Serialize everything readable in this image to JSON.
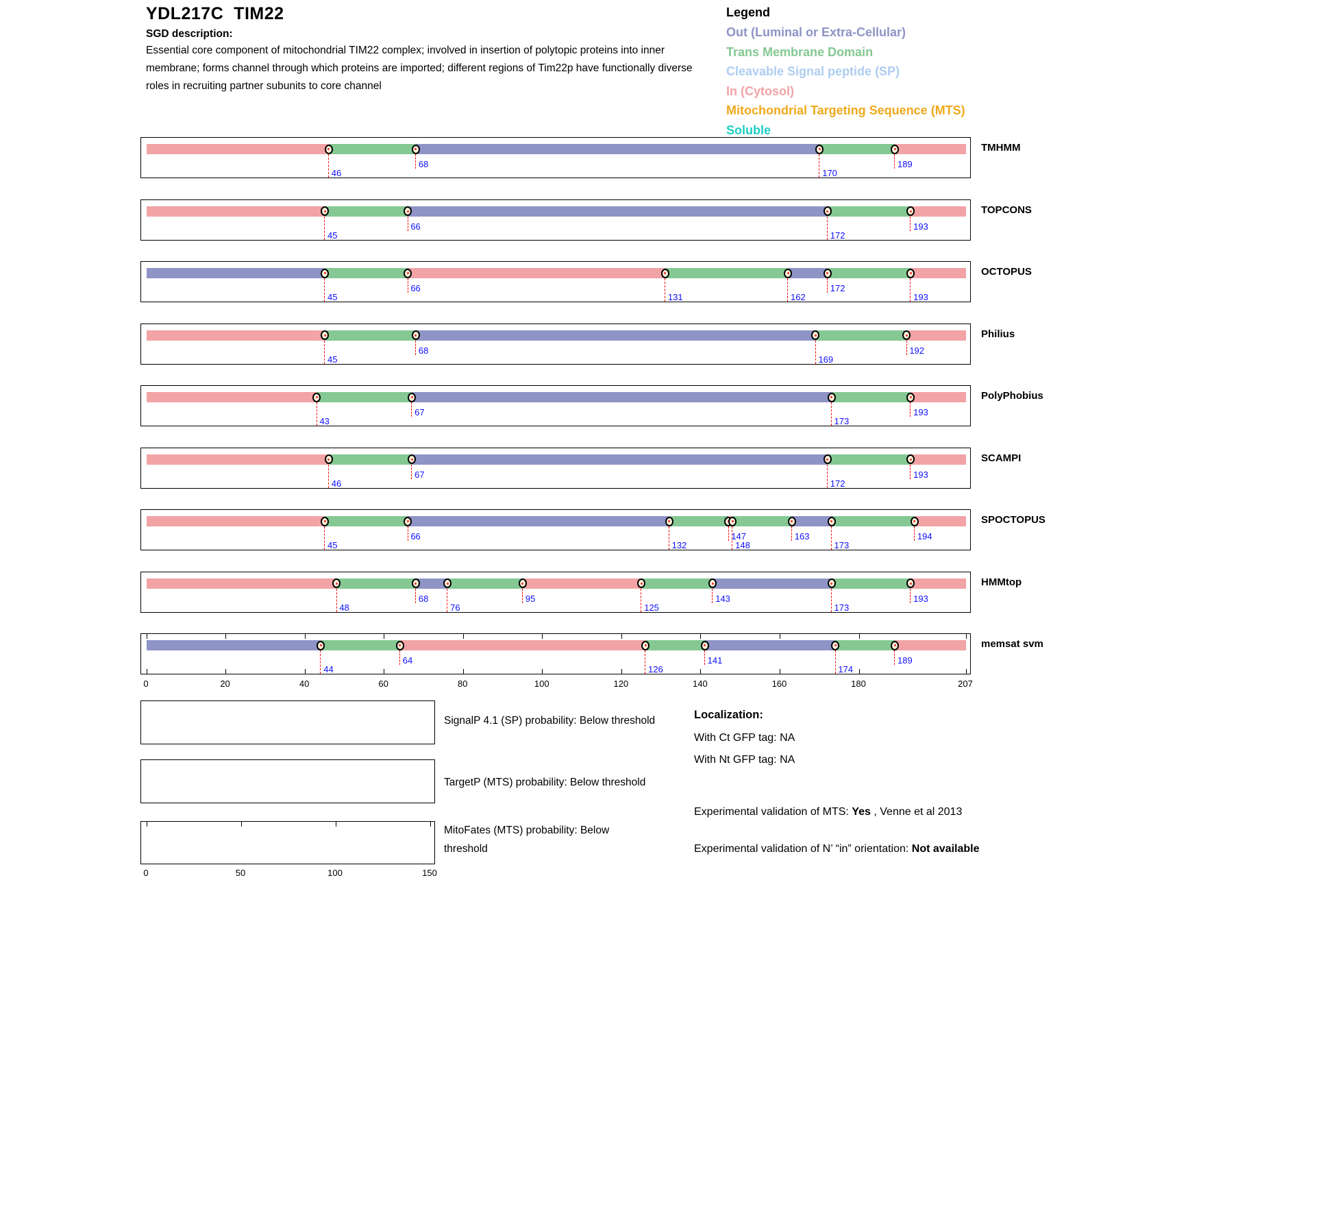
{
  "header": {
    "title_orf": "YDL217C",
    "title_gene": "TIM22",
    "sgd_label": "SGD description:",
    "description": "Essential core component of mitochondrial TIM22 complex; involved in insertion of polytopic proteins into inner membrane; forms channel through which proteins are imported; different regions of Tim22p have functionally diverse roles in recruiting partner subunits to core channel"
  },
  "legend": {
    "title": "Legend",
    "items": [
      {
        "key": "out",
        "label": "Out (Luminal or Extra-Cellular)",
        "color": "#8f94c6"
      },
      {
        "key": "tm",
        "label": "Trans Membrane Domain",
        "color": "#85c893"
      },
      {
        "key": "sp",
        "label": "Cleavable Signal peptide (SP)",
        "color": "#aecdf2"
      },
      {
        "key": "in",
        "label": "In (Cytosol)",
        "color": "#f2a3a6"
      },
      {
        "key": "mts",
        "label": "Mitochondrial Targeting Sequence (MTS)",
        "color": "#efa91b"
      },
      {
        "key": "soluble",
        "label": "Soluble",
        "color": "#1ecfc5"
      }
    ]
  },
  "chart_data": {
    "type": "bar",
    "subtype": "protein-topology-tracks",
    "x_range": [
      0,
      207
    ],
    "axis_ticks": [
      0,
      20,
      40,
      60,
      80,
      100,
      120,
      140,
      160,
      180,
      207
    ],
    "region_colors": {
      "in": "#f2a3a6",
      "tm": "#85c893",
      "out": "#8f94c6"
    },
    "tracks": [
      {
        "name": "TMHMM",
        "ruler": false,
        "segments": [
          [
            "in",
            0,
            46
          ],
          [
            "tm",
            46,
            68
          ],
          [
            "out",
            68,
            170
          ],
          [
            "tm",
            170,
            189
          ],
          [
            "in",
            189,
            207
          ]
        ],
        "boundaries": [
          {
            "pos": 46,
            "level": "low"
          },
          {
            "pos": 68,
            "level": "high"
          },
          {
            "pos": 170,
            "level": "low"
          },
          {
            "pos": 189,
            "level": "high"
          }
        ]
      },
      {
        "name": "TOPCONS",
        "ruler": false,
        "segments": [
          [
            "in",
            0,
            45
          ],
          [
            "tm",
            45,
            66
          ],
          [
            "out",
            66,
            172
          ],
          [
            "tm",
            172,
            193
          ],
          [
            "in",
            193,
            207
          ]
        ],
        "boundaries": [
          {
            "pos": 45,
            "level": "low"
          },
          {
            "pos": 66,
            "level": "high"
          },
          {
            "pos": 172,
            "level": "low"
          },
          {
            "pos": 193,
            "level": "high"
          }
        ]
      },
      {
        "name": "OCTOPUS",
        "ruler": false,
        "segments": [
          [
            "out",
            0,
            45
          ],
          [
            "tm",
            45,
            66
          ],
          [
            "in",
            66,
            131
          ],
          [
            "tm",
            131,
            162
          ],
          [
            "out",
            162,
            172
          ],
          [
            "tm",
            172,
            193
          ],
          [
            "in",
            193,
            207
          ]
        ],
        "boundaries": [
          {
            "pos": 45,
            "level": "low"
          },
          {
            "pos": 66,
            "level": "high"
          },
          {
            "pos": 131,
            "level": "low"
          },
          {
            "pos": 162,
            "level": "low"
          },
          {
            "pos": 172,
            "level": "high"
          },
          {
            "pos": 193,
            "level": "low"
          }
        ]
      },
      {
        "name": "Philius",
        "ruler": false,
        "segments": [
          [
            "in",
            0,
            45
          ],
          [
            "tm",
            45,
            68
          ],
          [
            "out",
            68,
            169
          ],
          [
            "tm",
            169,
            192
          ],
          [
            "in",
            192,
            207
          ]
        ],
        "boundaries": [
          {
            "pos": 45,
            "level": "low"
          },
          {
            "pos": 68,
            "level": "high"
          },
          {
            "pos": 169,
            "level": "low"
          },
          {
            "pos": 192,
            "level": "high"
          }
        ]
      },
      {
        "name": "PolyPhobius",
        "ruler": false,
        "segments": [
          [
            "in",
            0,
            43
          ],
          [
            "tm",
            43,
            67
          ],
          [
            "out",
            67,
            173
          ],
          [
            "tm",
            173,
            193
          ],
          [
            "in",
            193,
            207
          ]
        ],
        "boundaries": [
          {
            "pos": 43,
            "level": "low"
          },
          {
            "pos": 67,
            "level": "high"
          },
          {
            "pos": 173,
            "level": "low"
          },
          {
            "pos": 193,
            "level": "high"
          }
        ]
      },
      {
        "name": "SCAMPI",
        "ruler": false,
        "segments": [
          [
            "in",
            0,
            46
          ],
          [
            "tm",
            46,
            67
          ],
          [
            "out",
            67,
            172
          ],
          [
            "tm",
            172,
            193
          ],
          [
            "in",
            193,
            207
          ]
        ],
        "boundaries": [
          {
            "pos": 46,
            "level": "low"
          },
          {
            "pos": 67,
            "level": "high"
          },
          {
            "pos": 172,
            "level": "low"
          },
          {
            "pos": 193,
            "level": "high"
          }
        ]
      },
      {
        "name": "SPOCTOPUS",
        "ruler": false,
        "segments": [
          [
            "in",
            0,
            45
          ],
          [
            "tm",
            45,
            66
          ],
          [
            "out",
            66,
            132
          ],
          [
            "tm",
            132,
            147
          ],
          [
            "in",
            147,
            148
          ],
          [
            "tm",
            148,
            163
          ],
          [
            "out",
            163,
            173
          ],
          [
            "tm",
            173,
            194
          ],
          [
            "in",
            194,
            207
          ]
        ],
        "boundaries": [
          {
            "pos": 45,
            "level": "low"
          },
          {
            "pos": 66,
            "level": "high"
          },
          {
            "pos": 132,
            "level": "low"
          },
          {
            "pos": 147,
            "level": "high"
          },
          {
            "pos": 148,
            "level": "low"
          },
          {
            "pos": 163,
            "level": "high"
          },
          {
            "pos": 173,
            "level": "low"
          },
          {
            "pos": 194,
            "level": "high"
          }
        ]
      },
      {
        "name": "HMMtop",
        "ruler": false,
        "segments": [
          [
            "in",
            0,
            48
          ],
          [
            "tm",
            48,
            68
          ],
          [
            "out",
            68,
            76
          ],
          [
            "tm",
            76,
            95
          ],
          [
            "in",
            95,
            125
          ],
          [
            "tm",
            125,
            143
          ],
          [
            "out",
            143,
            173
          ],
          [
            "tm",
            173,
            193
          ],
          [
            "in",
            193,
            207
          ]
        ],
        "boundaries": [
          {
            "pos": 48,
            "level": "low"
          },
          {
            "pos": 68,
            "level": "high"
          },
          {
            "pos": 76,
            "level": "low"
          },
          {
            "pos": 95,
            "level": "high"
          },
          {
            "pos": 125,
            "level": "low"
          },
          {
            "pos": 143,
            "level": "high"
          },
          {
            "pos": 173,
            "level": "low"
          },
          {
            "pos": 193,
            "level": "high"
          }
        ]
      },
      {
        "name": "memsat svm",
        "ruler": true,
        "segments": [
          [
            "out",
            0,
            44
          ],
          [
            "tm",
            44,
            64
          ],
          [
            "in",
            64,
            126
          ],
          [
            "tm",
            126,
            141
          ],
          [
            "out",
            141,
            174
          ],
          [
            "tm",
            174,
            189
          ],
          [
            "in",
            189,
            207
          ]
        ],
        "boundaries": [
          {
            "pos": 44,
            "level": "low"
          },
          {
            "pos": 64,
            "level": "high"
          },
          {
            "pos": 126,
            "level": "low"
          },
          {
            "pos": 141,
            "level": "high"
          },
          {
            "pos": 174,
            "level": "low"
          },
          {
            "pos": 189,
            "level": "high"
          }
        ]
      }
    ]
  },
  "probability_plots": [
    {
      "label": "SignalP 4.1 (SP) probability: Below threshold",
      "axis_ticks": []
    },
    {
      "label": "TargetP (MTS) probability: Below threshold",
      "axis_ticks": []
    },
    {
      "label": "MitoFates (MTS) probability: Below threshold",
      "axis_ticks": [
        0,
        50,
        100,
        150
      ],
      "x_range": [
        0,
        150
      ]
    }
  ],
  "info_panel": {
    "localization_title": "Localization:",
    "ct_gfp": "With Ct GFP tag: NA",
    "nt_gfp": "With Nt GFP tag: NA",
    "mts_prefix": "Experimental validation of MTS: ",
    "mts_value": "Yes",
    "mts_suffix": " , Venne et al 2013",
    "orientation_prefix": "Experimental validation of N’ “in” orientation: ",
    "orientation_value": "Not available"
  }
}
